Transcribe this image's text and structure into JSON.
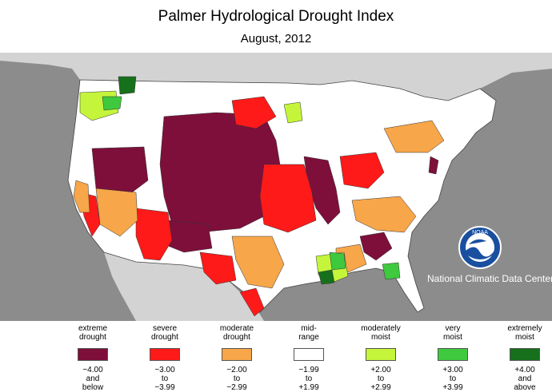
{
  "header": {
    "title": "Palmer Hydrological Drought Index",
    "subtitle": "August, 2012"
  },
  "colors": {
    "ocean": "#8c8c8c",
    "land_foreign": "#d3d3d3",
    "extreme_drought": "#7d0f3a",
    "severe_drought": "#ff1a1a",
    "moderate_drought": "#f7a64a",
    "mid_range": "#ffffff",
    "moderately_moist": "#c4f53a",
    "very_moist": "#3ec93e",
    "extremely_moist": "#17701b"
  },
  "legend": [
    {
      "label": "extreme\ndrought",
      "range": "−4.00\nand\nbelow",
      "color": "#7d0f3a"
    },
    {
      "label": "severe\ndrought",
      "range": "−3.00\nto\n−3.99",
      "color": "#ff1a1a"
    },
    {
      "label": "moderate\ndrought",
      "range": "−2.00\nto\n−2.99",
      "color": "#f7a64a"
    },
    {
      "label": "mid-\nrange",
      "range": "−1.99\nto\n+1.99",
      "color": "#ffffff"
    },
    {
      "label": "moderately\nmoist",
      "range": "+2.00\nto\n+2.99",
      "color": "#c4f53a"
    },
    {
      "label": "very\nmoist",
      "range": "+3.00\nto\n+3.99",
      "color": "#3ec93e"
    },
    {
      "label": "extremely\nmoist",
      "range": "+4.00\nand\nabove",
      "color": "#17701b"
    }
  ],
  "logo": {
    "text": "NOAA"
  },
  "credit": "National Climatic Data Center"
}
